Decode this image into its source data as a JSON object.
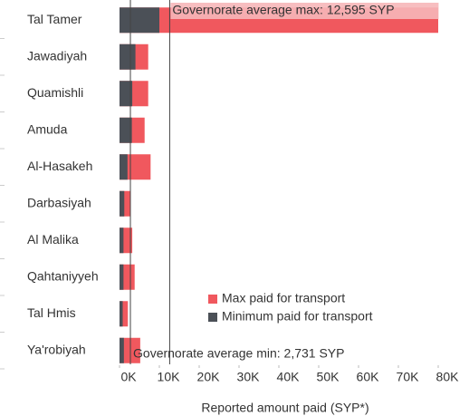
{
  "chart_data": {
    "type": "barh",
    "categories": [
      "Tal Tamer",
      "Jawadiyah",
      "Quamishli",
      "Amuda",
      "Al-Hasakeh",
      "Darbasiyah",
      "Al Malika",
      "Qahtaniyyeh",
      "Tal Hmis",
      "Ya'robiyah"
    ],
    "series": [
      {
        "name": "Max paid for transport",
        "color": "#f0585e",
        "values": [
          80000,
          7200,
          7200,
          6300,
          7800,
          2800,
          3200,
          3800,
          2100,
          5200
        ]
      },
      {
        "name": "Minimum paid for transport",
        "color": "#4b5057",
        "values": [
          10000,
          4000,
          3200,
          3100,
          2000,
          1200,
          1000,
          1000,
          800,
          1100
        ]
      }
    ],
    "xlim": [
      0,
      80000
    ],
    "xticks": [
      {
        "value": 0,
        "label": "0K"
      },
      {
        "value": 10000,
        "label": "10K"
      },
      {
        "value": 20000,
        "label": "20K"
      },
      {
        "value": 30000,
        "label": "30K"
      },
      {
        "value": 40000,
        "label": "40K"
      },
      {
        "value": 50000,
        "label": "50K"
      },
      {
        "value": 60000,
        "label": "60K"
      },
      {
        "value": 70000,
        "label": "70K"
      },
      {
        "value": 80000,
        "label": "80K"
      }
    ],
    "xlabel": "Reported amount paid (SYP*)",
    "reference_lines": [
      {
        "value": 12595,
        "label": "Governorate average max: 12,595 SYP"
      },
      {
        "value": 2731,
        "label": "Governorate average min: 2,731 SYP"
      }
    ],
    "legend": "lower right"
  }
}
